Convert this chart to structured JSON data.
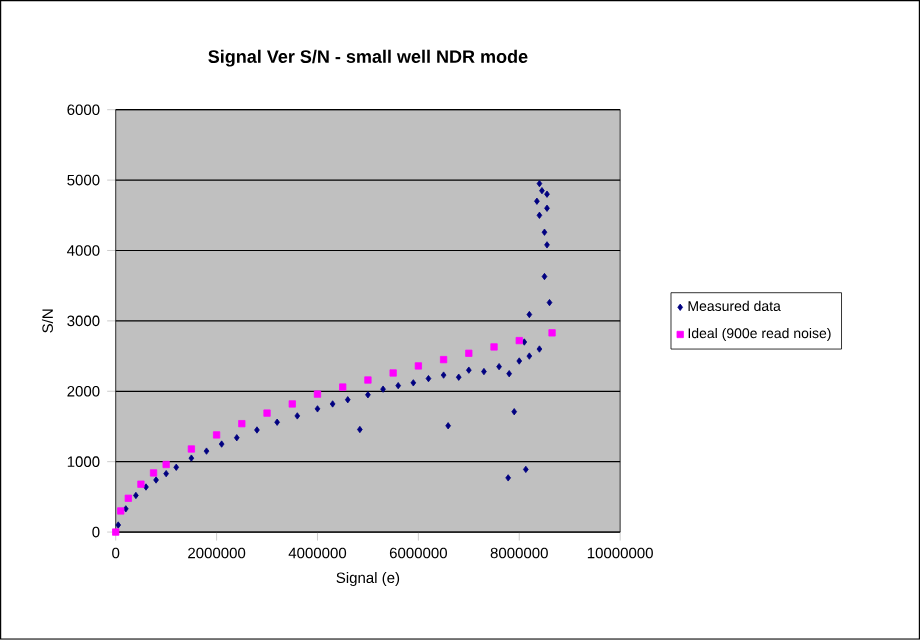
{
  "chart_data": {
    "type": "scatter",
    "title": "Signal Ver S/N - small well NDR mode",
    "xlabel": "Signal (e)",
    "ylabel": "S/N",
    "xlim": [
      0,
      10000000
    ],
    "xticks": [
      0,
      2000000,
      4000000,
      6000000,
      8000000,
      10000000
    ],
    "ylim": [
      0,
      6000
    ],
    "yticks": [
      0,
      1000,
      2000,
      3000,
      4000,
      5000,
      6000
    ],
    "grid": "y",
    "legend": "right",
    "series": [
      {
        "name": "Measured data",
        "color": "#000080",
        "marker": "diamond",
        "x": [
          50000,
          200000,
          400000,
          600000,
          800000,
          1000000,
          1200000,
          1500000,
          1800000,
          2100000,
          2400000,
          2800000,
          3200000,
          3600000,
          4000000,
          4300000,
          4600000,
          5000000,
          5300000,
          5600000,
          5900000,
          6200000,
          6500000,
          6800000,
          7000000,
          7300000,
          7600000,
          7800000,
          8000000,
          8200000,
          8400000,
          8100000,
          4840000,
          6590000,
          7900000,
          7780000,
          8130000,
          8200000,
          8600000,
          8500000,
          8550000,
          8500000,
          8400000,
          8350000,
          8400000,
          8450000,
          8550000,
          8550000
        ],
        "values": [
          100,
          330,
          520,
          640,
          740,
          830,
          920,
          1050,
          1150,
          1250,
          1340,
          1450,
          1560,
          1650,
          1750,
          1820,
          1880,
          1950,
          2030,
          2080,
          2120,
          2180,
          2230,
          2200,
          2300,
          2280,
          2350,
          2250,
          2430,
          2500,
          2600,
          2700,
          1457,
          1510,
          1710,
          770,
          890,
          3090,
          3260,
          3630,
          4080,
          4260,
          4500,
          4700,
          4950,
          4850,
          4600,
          4800
        ]
      },
      {
        "name": "Ideal (900e read noise)",
        "color": "#ff00ff",
        "marker": "square",
        "x": [
          0,
          100000,
          250000,
          500000,
          750000,
          1000000,
          1500000,
          2000000,
          2500000,
          3000000,
          3500000,
          4000000,
          4500000,
          5000000,
          5500000,
          6000000,
          6500000,
          7000000,
          7500000,
          8000000,
          8650000
        ],
        "values": [
          0,
          300,
          480,
          680,
          840,
          960,
          1180,
          1380,
          1540,
          1690,
          1820,
          1960,
          2060,
          2160,
          2260,
          2360,
          2450,
          2540,
          2630,
          2720,
          2830
        ]
      }
    ]
  }
}
